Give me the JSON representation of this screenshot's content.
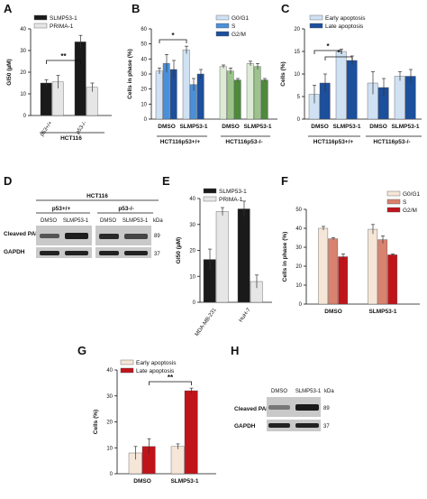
{
  "colors": {
    "black": "#1a1a1a",
    "light_gray": "#e6e6e6",
    "blue1": "#cfe1f3",
    "blue2": "#4a90d9",
    "blue3": "#1c4f9c",
    "green1": "#dcebd4",
    "green2": "#9cc38b",
    "green3": "#4e8a3c",
    "peach": "#f6e6d8",
    "salmon": "#d9826e",
    "red": "#c0141b"
  },
  "panels": {
    "A": {
      "label": "A"
    },
    "B": {
      "label": "B"
    },
    "C": {
      "label": "C"
    },
    "D": {
      "label": "D"
    },
    "E": {
      "label": "E"
    },
    "F": {
      "label": "F"
    },
    "G": {
      "label": "G"
    },
    "H": {
      "label": "H"
    }
  },
  "panelD": {
    "title": "HCT116",
    "group1": "p53+/+",
    "group2": "p53-/-",
    "lanes": [
      "DMSO",
      "SLMP53-1",
      "DMSO",
      "SLMP53-1"
    ],
    "kda": "kDa",
    "rows": [
      "Cleaved PARP",
      "GAPDH"
    ],
    "sizes": [
      "89",
      "37"
    ]
  },
  "panelH": {
    "lanes": [
      "DMSO",
      "SLMP53-1"
    ],
    "kda": "kDa",
    "rows": [
      "Cleaved PARP",
      "GAPDH"
    ],
    "sizes": [
      "89",
      "37"
    ]
  },
  "chart_data": [
    {
      "panel": "A",
      "type": "bar",
      "ylabel": "GI50 (µM)",
      "ylim": [
        0,
        40
      ],
      "yticks": [
        0,
        10,
        20,
        30,
        40
      ],
      "categories": [
        "p53+/+",
        "p53-/-"
      ],
      "group_label": "HCT116",
      "series": [
        {
          "name": "SLMP53-1",
          "values": [
            15,
            34
          ],
          "errors": [
            1.5,
            3
          ]
        },
        {
          "name": "PRIMA-1",
          "values": [
            15.5,
            13
          ],
          "errors": [
            3,
            2
          ]
        }
      ],
      "annotations": [
        "**"
      ],
      "legend": "top-left"
    },
    {
      "panel": "B",
      "type": "bar",
      "ylabel": "Cells in phase (%)",
      "ylim": [
        0,
        60
      ],
      "yticks": [
        0,
        10,
        20,
        30,
        40,
        50,
        60
      ],
      "categories": [
        "DMSO",
        "SLMP53-1",
        "DMSO",
        "SLMP53-1"
      ],
      "groups": [
        "HCT116p53+/+",
        "HCT116p53-/-"
      ],
      "series": [
        {
          "name": "G0/G1",
          "values": [
            32,
            46,
            35,
            37
          ],
          "errors": [
            2,
            2.5,
            1,
            1.5
          ]
        },
        {
          "name": "S",
          "values": [
            37,
            23,
            32,
            35
          ],
          "errors": [
            6,
            4,
            2,
            2
          ]
        },
        {
          "name": "G2/M",
          "values": [
            33,
            30,
            26,
            26
          ],
          "errors": [
            6,
            3,
            1,
            1
          ]
        }
      ],
      "annotations": [
        "*"
      ],
      "legend": "top-right"
    },
    {
      "panel": "C",
      "type": "bar",
      "ylabel": "Cells (%)",
      "ylim": [
        0,
        20
      ],
      "yticks": [
        0,
        5,
        10,
        15,
        20
      ],
      "categories": [
        "DMSO",
        "SLMP53-1",
        "DMSO",
        "SLMP53-1"
      ],
      "groups": [
        "HCT116p53+/+",
        "HCT116p53-/-"
      ],
      "series": [
        {
          "name": "Early apoptosis",
          "values": [
            5.5,
            15,
            8,
            9.5
          ],
          "errors": [
            2,
            0.5,
            2.5,
            1
          ]
        },
        {
          "name": "Late apoptosis",
          "values": [
            8,
            13,
            7,
            9.5
          ],
          "errors": [
            2,
            1,
            2,
            1.5
          ]
        }
      ],
      "annotations": [
        "*",
        "*"
      ],
      "legend": "top"
    },
    {
      "panel": "E",
      "type": "bar",
      "ylabel": "GI50 (µM)",
      "ylim": [
        0,
        40
      ],
      "yticks": [
        0,
        10,
        20,
        30,
        40
      ],
      "categories": [
        "MDA-MB-231",
        "HuH-7"
      ],
      "series": [
        {
          "name": "SLMP53-1",
          "values": [
            16.5,
            36
          ],
          "errors": [
            4,
            3
          ]
        },
        {
          "name": "PRIMA-1",
          "values": [
            35,
            8
          ],
          "errors": [
            1.5,
            2.5
          ]
        }
      ],
      "legend": "top"
    },
    {
      "panel": "F",
      "type": "bar",
      "ylabel": "Cells in phase (%)",
      "ylim": [
        0,
        50
      ],
      "yticks": [
        0,
        10,
        20,
        30,
        40,
        50
      ],
      "categories": [
        "DMSO",
        "SLMP53-1"
      ],
      "series": [
        {
          "name": "G0/G1",
          "values": [
            40,
            39.5
          ],
          "errors": [
            1,
            2.5
          ]
        },
        {
          "name": "S",
          "values": [
            34.5,
            34
          ],
          "errors": [
            0.5,
            2
          ]
        },
        {
          "name": "G2/M",
          "values": [
            25,
            26
          ],
          "errors": [
            1.5,
            0.5
          ]
        }
      ],
      "legend": "top-right"
    },
    {
      "panel": "G",
      "type": "bar",
      "ylabel": "Cells (%)",
      "ylim": [
        0,
        40
      ],
      "yticks": [
        0,
        10,
        20,
        30,
        40
      ],
      "categories": [
        "DMSO",
        "SLMP53-1"
      ],
      "series": [
        {
          "name": "Early apoptosis",
          "values": [
            8,
            10.5
          ],
          "errors": [
            2.5,
            1
          ]
        },
        {
          "name": "Late apoptosis",
          "values": [
            10.5,
            32
          ],
          "errors": [
            3,
            1
          ]
        }
      ],
      "annotations": [
        "**"
      ],
      "legend": "top-left"
    }
  ]
}
